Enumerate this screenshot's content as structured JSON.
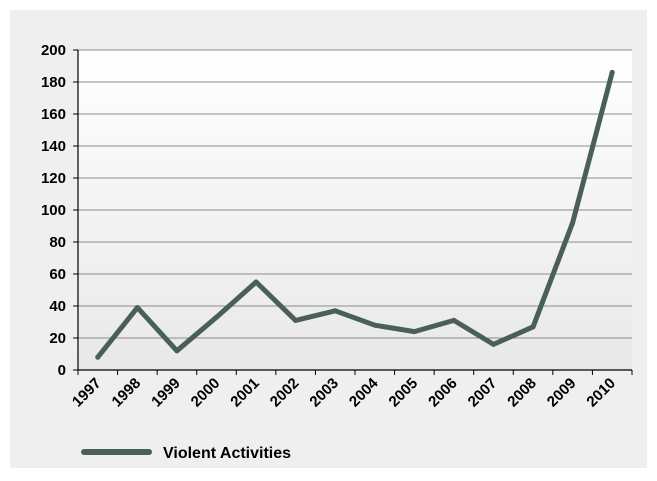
{
  "chart_data": {
    "type": "line",
    "title": "",
    "xlabel": "",
    "ylabel": "",
    "x": [
      "1997",
      "1998",
      "1999",
      "2000",
      "2001",
      "2002",
      "2003",
      "2004",
      "2005",
      "2006",
      "2007",
      "2008",
      "2009",
      "2010"
    ],
    "series": [
      {
        "name": "Violent Activities",
        "values": [
          8,
          39,
          12,
          33,
          55,
          31,
          37,
          28,
          24,
          31,
          16,
          27,
          92,
          186
        ]
      }
    ],
    "ylim": [
      0,
      200
    ],
    "y_ticks": [
      0,
      20,
      40,
      60,
      80,
      100,
      120,
      140,
      160,
      180,
      200
    ],
    "grid": true,
    "legend_position": "bottom-left",
    "colors": {
      "line": "#4a5f5c",
      "grid": "#8c8c8c",
      "axis": "#000000",
      "plot_background_top": "#ffffff",
      "plot_background_bottom": "#e8e8e8",
      "frame_background": "#efefef"
    }
  }
}
